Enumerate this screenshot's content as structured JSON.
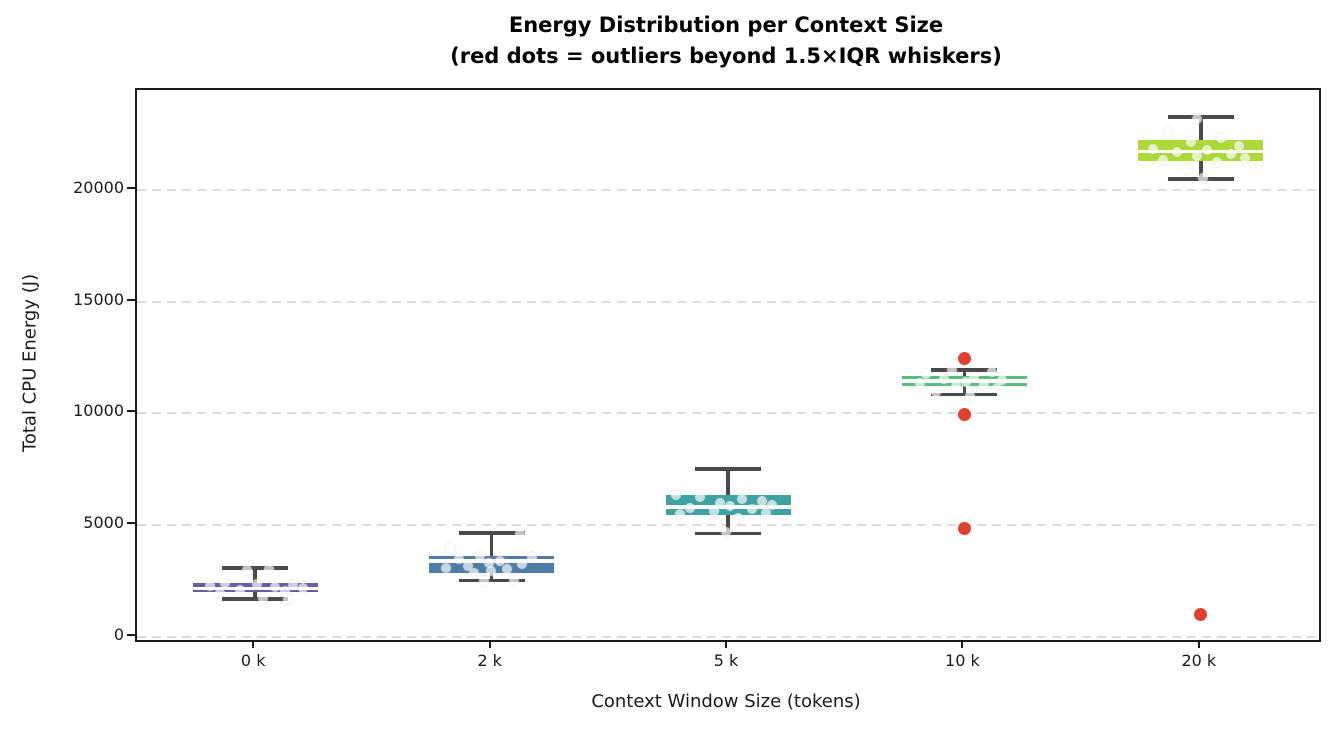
{
  "header": {
    "title": "Energy Distribution per Context Size",
    "subtitle": "(red dots = outliers beyond 1.5×IQR whiskers)"
  },
  "chart_data": {
    "type": "boxplot",
    "title": "Energy Distribution per Context Size",
    "subtitle": "(red dots = outliers beyond 1.5×IQR whiskers)",
    "xlabel": "Context Window Size (tokens)",
    "ylabel": "Total CPU Energy (J)",
    "categories": [
      "0 k",
      "2 k",
      "5 k",
      "10 k",
      "20 k"
    ],
    "y_ticks": [
      0,
      5000,
      10000,
      15000,
      20000
    ],
    "ylim": [
      -134,
      24462
    ],
    "grid": "horizontal-dashed",
    "legend_position": "none",
    "boxes": [
      {
        "category": "0 k",
        "color": "#6A5B9E",
        "whisker_low": 1700,
        "q1": 2000,
        "median": 2160,
        "q3": 2420,
        "whisker_high": 3075,
        "outliers": []
      },
      {
        "category": "2 k",
        "color": "#4D7DA5",
        "whisker_low": 2530,
        "q1": 2880,
        "median": 3400,
        "q3": 3610,
        "whisker_high": 4650,
        "outliers": []
      },
      {
        "category": "5 k",
        "color": "#3EA2A2",
        "whisker_low": 4620,
        "q1": 5440,
        "median": 5820,
        "q3": 6330,
        "whisker_high": 7520,
        "outliers": []
      },
      {
        "category": "10 k",
        "color": "#57BE7E",
        "whisker_low": 10840,
        "q1": 11240,
        "median": 11450,
        "q3": 11660,
        "whisker_high": 11950,
        "outliers": [
          12470,
          9940,
          4840
        ]
      },
      {
        "category": "20 k",
        "color": "#ABD935",
        "whisker_low": 20490,
        "q1": 21290,
        "median": 21720,
        "q3": 22240,
        "whisker_high": 23250,
        "outliers": [
          1000
        ]
      }
    ],
    "jitter_points": [
      [
        [
          3060,
          14
        ],
        [
          2980,
          -8
        ],
        [
          2400,
          -30
        ],
        [
          2360,
          2
        ],
        [
          2330,
          38
        ],
        [
          2290,
          -45
        ],
        [
          2240,
          20
        ],
        [
          2180,
          48
        ],
        [
          2120,
          -15
        ],
        [
          2060,
          30
        ],
        [
          1980,
          -35
        ],
        [
          1760,
          8
        ],
        [
          1720,
          33
        ]
      ],
      [
        [
          4600,
          28
        ],
        [
          3980,
          -42
        ],
        [
          3640,
          -12
        ],
        [
          3560,
          40
        ],
        [
          3480,
          -33
        ],
        [
          3400,
          8
        ],
        [
          3330,
          -3
        ],
        [
          3260,
          30
        ],
        [
          3180,
          -24
        ],
        [
          3080,
          -46
        ],
        [
          3020,
          15
        ],
        [
          2960,
          -1
        ],
        [
          2880,
          -18
        ],
        [
          2560,
          22
        ],
        [
          2510,
          -8
        ]
      ],
      [
        [
          6340,
          -52
        ],
        [
          6270,
          -28
        ],
        [
          6180,
          14
        ],
        [
          6080,
          34
        ],
        [
          5980,
          -8
        ],
        [
          5920,
          44
        ],
        [
          5860,
          2
        ],
        [
          5780,
          -38
        ],
        [
          5720,
          24
        ],
        [
          5640,
          -14
        ],
        [
          5540,
          38
        ],
        [
          5480,
          -48
        ],
        [
          5340,
          10
        ],
        [
          4700,
          -2
        ]
      ],
      [
        [
          11930,
          -12
        ],
        [
          11860,
          28
        ],
        [
          11740,
          -38
        ],
        [
          11640,
          10
        ],
        [
          11560,
          -20
        ],
        [
          11480,
          38
        ],
        [
          11420,
          2
        ],
        [
          11360,
          -44
        ],
        [
          11300,
          20
        ],
        [
          11220,
          -8
        ],
        [
          11120,
          33
        ],
        [
          10940,
          -28
        ],
        [
          10790,
          6
        ]
      ],
      [
        [
          23180,
          -4
        ],
        [
          22520,
          -33
        ],
        [
          22330,
          20
        ],
        [
          22140,
          -10
        ],
        [
          21950,
          38
        ],
        [
          21840,
          -48
        ],
        [
          21770,
          6
        ],
        [
          21680,
          -24
        ],
        [
          21620,
          30
        ],
        [
          21520,
          -4
        ],
        [
          21430,
          44
        ],
        [
          21330,
          -38
        ],
        [
          21230,
          16
        ],
        [
          20950,
          -14
        ],
        [
          20540,
          2
        ]
      ]
    ],
    "colors": {
      "outlier": "#E0402F",
      "whisker": "#4A4A4A",
      "median_line": "#FFFFFF",
      "gridline": "#DCDCDC",
      "spine": "#1A1A1A",
      "jitter_fill": "rgba(255,255,255,0.68)"
    }
  }
}
